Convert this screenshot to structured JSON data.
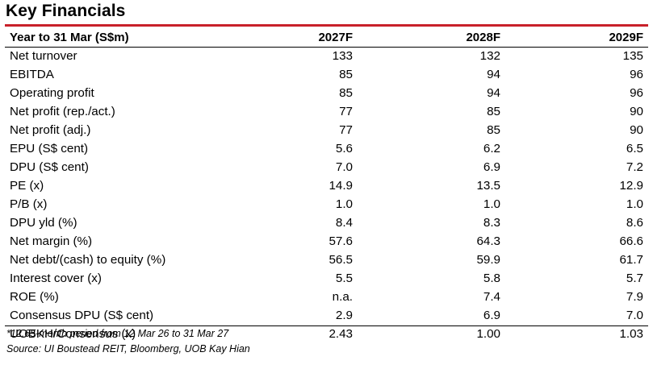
{
  "title": "Key Financials",
  "table": {
    "header": {
      "label": "Year to 31 Mar (S$m)",
      "col1": "2027F",
      "col2": "2028F",
      "col3": "2029F"
    },
    "rows": [
      {
        "label": "Net turnover",
        "v1": "133",
        "v2": "132",
        "v3": "135"
      },
      {
        "label": "EBITDA",
        "v1": "85",
        "v2": "94",
        "v3": "96"
      },
      {
        "label": "Operating profit",
        "v1": "85",
        "v2": "94",
        "v3": "96"
      },
      {
        "label": "Net profit (rep./act.)",
        "v1": "77",
        "v2": "85",
        "v3": "90"
      },
      {
        "label": "Net profit (adj.)",
        "v1": "77",
        "v2": "85",
        "v3": "90"
      },
      {
        "label": "EPU (S$ cent)",
        "v1": "5.6",
        "v2": "6.2",
        "v3": "6.5"
      },
      {
        "label": "DPU (S$ cent)",
        "v1": "7.0",
        "v2": "6.9",
        "v3": "7.2"
      },
      {
        "label": "PE (x)",
        "v1": "14.9",
        "v2": "13.5",
        "v3": "12.9"
      },
      {
        "label": "P/B (x)",
        "v1": "1.0",
        "v2": "1.0",
        "v3": "1.0"
      },
      {
        "label": "DPU yld (%)",
        "v1": "8.4",
        "v2": "8.3",
        "v3": "8.6"
      },
      {
        "label": "Net margin (%)",
        "v1": "57.6",
        "v2": "64.3",
        "v3": "66.6"
      },
      {
        "label": "Net debt/(cash) to equity (%)",
        "v1": "56.5",
        "v2": "59.9",
        "v3": "61.7"
      },
      {
        "label": "Interest cover (x)",
        "v1": "5.5",
        "v2": "5.8",
        "v3": "5.7"
      },
      {
        "label": "ROE (%)",
        "v1": "n.a.",
        "v2": "7.4",
        "v3": "7.9"
      },
      {
        "label": "Consensus DPU (S$ cent)",
        "v1": "2.9",
        "v2": "6.9",
        "v3": "7.0"
      },
      {
        "label": "UOBKH/Consensus (x)",
        "v1": "2.43",
        "v2": "1.00",
        "v3": "1.03"
      }
    ]
  },
  "notes": {
    "footnote": "*12.65-month period from 12 Mar 26 to 31 Mar 27",
    "source": "Source: UI Boustead REIT, Bloomberg, UOB Kay Hian"
  },
  "colors": {
    "accent_rule": "#c8202a"
  }
}
